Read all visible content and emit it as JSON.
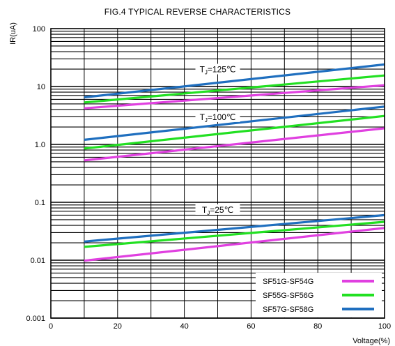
{
  "chart_data": {
    "type": "line",
    "title": "FIG.4 TYPICAL REVERSE CHARACTERISTICS",
    "xlabel": "Voltage(%)",
    "ylabel": "IR(uA)",
    "xlim": [
      0,
      100
    ],
    "ylim": [
      0.001,
      100
    ],
    "yscale": "log",
    "x_ticks": [
      0,
      20,
      40,
      60,
      80,
      100
    ],
    "x_tick_labels": [
      "0",
      "20",
      "40",
      "60",
      "80",
      "100"
    ],
    "y_ticks": [
      0.001,
      0.01,
      0.1,
      1,
      10,
      100
    ],
    "y_tick_labels": [
      "0.001",
      "0.01",
      "0.1",
      "1.0",
      "10",
      "100"
    ],
    "grid": true,
    "legend_position": "bottom-right",
    "annotations": [
      {
        "name": "tj-125",
        "text_main": "T",
        "text_sub": "J",
        "text_rest": "=125℃",
        "x": 50,
        "y": 20
      },
      {
        "name": "tj-100",
        "text_main": "T",
        "text_sub": "J",
        "text_rest": "=100℃",
        "x": 50,
        "y": 3.0
      },
      {
        "name": "tj-25",
        "text_main": "T",
        "text_sub": "J",
        "text_rest": "=25℃",
        "x": 50,
        "y": 0.075
      }
    ],
    "series": [
      {
        "name": "SF51G-SF54G",
        "color": "#e040e0",
        "group": "Tj=125℃",
        "x": [
          10,
          100
        ],
        "y": [
          4.2,
          10.5
        ]
      },
      {
        "name": "SF55G-SF56G",
        "color": "#22e022",
        "group": "Tj=125℃",
        "x": [
          10,
          100
        ],
        "y": [
          5.3,
          15.5
        ]
      },
      {
        "name": "SF57G-SF58G",
        "color": "#1f6fbf",
        "group": "Tj=125℃",
        "x": [
          10,
          100
        ],
        "y": [
          6.5,
          24
        ]
      },
      {
        "name": "SF51G-SF54G",
        "color": "#e040e0",
        "group": "Tj=100℃",
        "x": [
          10,
          100
        ],
        "y": [
          0.53,
          1.9
        ]
      },
      {
        "name": "SF55G-SF56G",
        "color": "#22e022",
        "group": "Tj=100℃",
        "x": [
          10,
          100
        ],
        "y": [
          0.85,
          3.1
        ]
      },
      {
        "name": "SF57G-SF58G",
        "color": "#1f6fbf",
        "group": "Tj=100℃",
        "x": [
          10,
          100
        ],
        "y": [
          1.2,
          4.5
        ]
      },
      {
        "name": "SF51G-SF54G",
        "color": "#e040e0",
        "group": "Tj=25℃",
        "x": [
          10,
          100
        ],
        "y": [
          0.0098,
          0.036
        ]
      },
      {
        "name": "SF55G-SF56G",
        "color": "#22e022",
        "group": "Tj=25℃",
        "x": [
          10,
          100
        ],
        "y": [
          0.017,
          0.046
        ]
      },
      {
        "name": "SF57G-SF58G",
        "color": "#1f6fbf",
        "group": "Tj=25℃",
        "x": [
          10,
          100
        ],
        "y": [
          0.021,
          0.06
        ]
      }
    ],
    "legend": [
      {
        "label": "SF51G-SF54G",
        "color": "#e040e0"
      },
      {
        "label": "SF55G-SF56G",
        "color": "#22e022"
      },
      {
        "label": "SF57G-SF58G",
        "color": "#1f6fbf"
      }
    ]
  }
}
